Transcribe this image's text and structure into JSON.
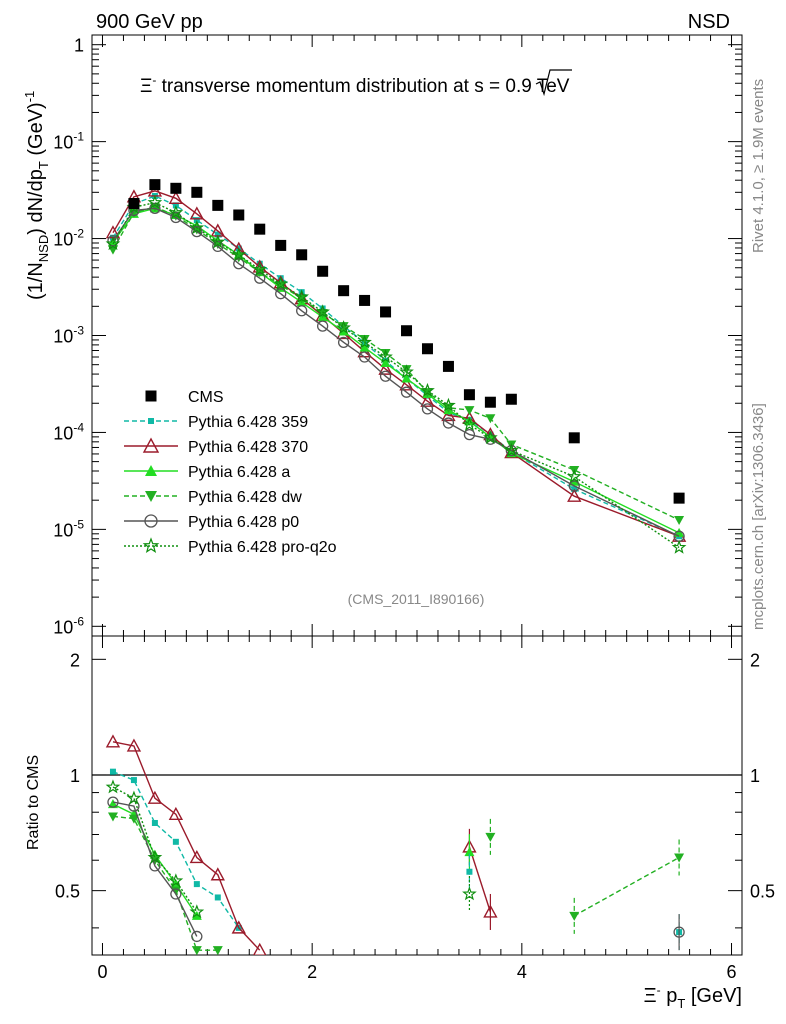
{
  "header": {
    "left": "900 GeV pp",
    "right": "NSD"
  },
  "side_labels": {
    "top": "Rivet 4.1.0, ≥ 1.9M events",
    "bottom": "mcplots.cern.ch [arXiv:1306.3436]"
  },
  "chart_data": {
    "type": "line",
    "title": {
      "prefix": "Ξ",
      "sup": "-",
      "mid": " transverse momentum distribution at ",
      "s": "s",
      "suffix": " = 0.9 TeV"
    },
    "analysis_tag": "(CMS_2011_I890166)",
    "ylabel": {
      "a": "(1/N",
      "sub1": "NSD",
      "b": ") dN/dp",
      "sub2": "T",
      "c": " (GeV)",
      "sup": "-1"
    },
    "ratio_ylabel": "Ratio to CMS",
    "xlabel": {
      "a": "Ξ",
      "sup": "-",
      "b": " p",
      "sub": "T",
      "c": " [GeV]"
    },
    "xlim": [
      -0.1,
      6.1
    ],
    "ylim_log10": [
      -6.1,
      0.1
    ],
    "ratio_ylim": [
      0.34,
      2.3
    ],
    "x_ticks": [
      "0",
      "2",
      "4",
      "6"
    ],
    "y_ticks": [
      {
        "base": "10",
        "exp": "-6"
      },
      {
        "base": "10",
        "exp": "-5"
      },
      {
        "base": "10",
        "exp": "-4"
      },
      {
        "base": "10",
        "exp": "-3"
      },
      {
        "base": "10",
        "exp": "-2"
      },
      {
        "base": "10",
        "exp": "-1"
      },
      {
        "base": "1",
        "exp": ""
      }
    ],
    "ratio_ticks": [
      "0.5",
      "1",
      "2"
    ],
    "x": [
      0.1,
      0.3,
      0.5,
      0.7,
      0.9,
      1.1,
      1.3,
      1.5,
      1.7,
      1.9,
      2.1,
      2.3,
      2.5,
      2.7,
      2.9,
      3.1,
      3.3,
      3.5,
      3.7,
      3.9,
      4.5,
      5.5
    ],
    "series": [
      {
        "name": "CMS",
        "color": "#000000",
        "dash": "",
        "marker": "square-filled",
        "values": [
          null,
          0.023,
          0.036,
          0.033,
          0.03,
          0.022,
          0.0175,
          0.0125,
          0.0085,
          0.0068,
          0.0046,
          0.0029,
          0.0023,
          0.00175,
          0.00112,
          0.00073,
          0.00048,
          0.000245,
          0.000205,
          0.00022,
          8.8e-05,
          2.1e-05
        ],
        "ratio": []
      },
      {
        "name": "Pythia 6.428 359",
        "color": "#10b9a6",
        "dash": "5,3",
        "marker": "square-small",
        "values": [
          0.0102,
          0.0228,
          0.0275,
          0.022,
          0.0155,
          0.011,
          0.0079,
          0.0055,
          0.0039,
          0.0028,
          0.0019,
          0.00125,
          0.00084,
          0.00055,
          0.00036,
          0.00024,
          0.00016,
          0.000135,
          9.5e-05,
          6.3e-05,
          2.6e-05,
          8.5e-06
        ],
        "ratio": [
          1.02,
          0.97,
          0.75,
          0.67,
          0.52,
          0.48,
          0.4
        ]
      },
      {
        "name": "Pythia 6.428 370",
        "color": "#9b1b2b",
        "dash": "",
        "marker": "triangle-open",
        "values": [
          0.0115,
          0.027,
          0.031,
          0.026,
          0.018,
          0.012,
          0.0078,
          0.0051,
          0.0035,
          0.0024,
          0.0016,
          0.00105,
          0.00068,
          0.00045,
          0.00031,
          0.00021,
          0.00015,
          0.00014,
          9.5e-05,
          6.2e-05,
          2.2e-05,
          8.5e-06
        ],
        "ratio": [
          1.22,
          1.19,
          0.87,
          0.79,
          0.61,
          0.55,
          0.4,
          0.35
        ]
      },
      {
        "name": "Pythia 6.428 a",
        "color": "#22dd22",
        "dash": "",
        "marker": "triangle-filled",
        "values": [
          0.0092,
          0.018,
          0.0205,
          0.0175,
          0.0135,
          0.0095,
          0.0068,
          0.0045,
          0.0031,
          0.0022,
          0.00155,
          0.0011,
          0.00075,
          0.00052,
          0.00036,
          0.00025,
          0.00017,
          0.00013,
          9e-05,
          6.1e-05,
          3.1e-05,
          9.2e-06
        ],
        "ratio": [
          0.84,
          0.79,
          0.62,
          0.52,
          0.43
        ]
      },
      {
        "name": "Pythia 6.428 dw",
        "color": "#22b022",
        "dash": "5,3",
        "marker": "triangle-down-filled",
        "values": [
          0.0077,
          0.0185,
          0.0212,
          0.0172,
          0.0124,
          0.0088,
          0.0064,
          0.0045,
          0.0033,
          0.0024,
          0.0017,
          0.00125,
          0.00092,
          0.00066,
          0.00045,
          0.00026,
          0.00018,
          0.00017,
          0.00014,
          7.5e-05,
          4.1e-05,
          1.25e-05
        ],
        "ratio": [
          0.78,
          0.77,
          0.6,
          0.5,
          0.35,
          0.35
        ]
      },
      {
        "name": "Pythia 6.428 p0",
        "color": "#555555",
        "dash": "",
        "marker": "circle-open",
        "values": [
          0.0095,
          0.0195,
          0.0205,
          0.0165,
          0.0118,
          0.0083,
          0.0055,
          0.0039,
          0.0027,
          0.0018,
          0.00125,
          0.00085,
          0.0006,
          0.00038,
          0.00026,
          0.000175,
          0.000125,
          9.5e-05,
          8.5e-05,
          6.5e-05,
          2.8e-05,
          8.5e-06
        ],
        "ratio": [
          0.85,
          0.83,
          0.58,
          0.49,
          0.38
        ]
      },
      {
        "name": "Pythia 6.428 pro-q2o",
        "color": "#0f8f0f",
        "dash": "2,2",
        "marker": "star-open",
        "values": [
          0.0088,
          0.021,
          0.0235,
          0.0185,
          0.0129,
          0.0092,
          0.0068,
          0.0048,
          0.0034,
          0.0025,
          0.00175,
          0.0012,
          0.00085,
          0.0006,
          0.00042,
          0.00027,
          0.00019,
          0.00012,
          8.8e-05,
          6.5e-05,
          3.5e-05,
          6.5e-06
        ],
        "ratio": [
          0.93,
          0.87,
          0.61,
          0.53,
          0.44
        ]
      }
    ],
    "ratio_fragments": [
      {
        "color": "#22b022",
        "dash": "5,3",
        "points": [
          [
            4.5,
            0.43
          ],
          [
            5.5,
            0.61
          ]
        ]
      },
      {
        "color": "#10b9a6",
        "dash": "5,3",
        "points": [
          [
            5.5,
            0.39
          ]
        ]
      },
      {
        "color": "#555555",
        "dash": "",
        "points": [
          [
            5.5,
            0.39
          ]
        ]
      },
      {
        "color": "#9b1b2b",
        "dash": "",
        "points": [
          [
            3.5,
            0.65
          ],
          [
            3.7,
            0.44
          ]
        ]
      },
      {
        "color": "#22dd22",
        "dash": "",
        "points": [
          [
            3.5,
            0.63
          ]
        ]
      },
      {
        "color": "#22b022",
        "dash": "5,3",
        "points": [
          [
            3.7,
            0.69
          ]
        ]
      },
      {
        "color": "#10b9a6",
        "dash": "5,3",
        "points": [
          [
            3.5,
            0.56
          ]
        ]
      },
      {
        "color": "#0f8f0f",
        "dash": "2,2",
        "points": [
          [
            3.5,
            0.49
          ]
        ]
      }
    ]
  }
}
